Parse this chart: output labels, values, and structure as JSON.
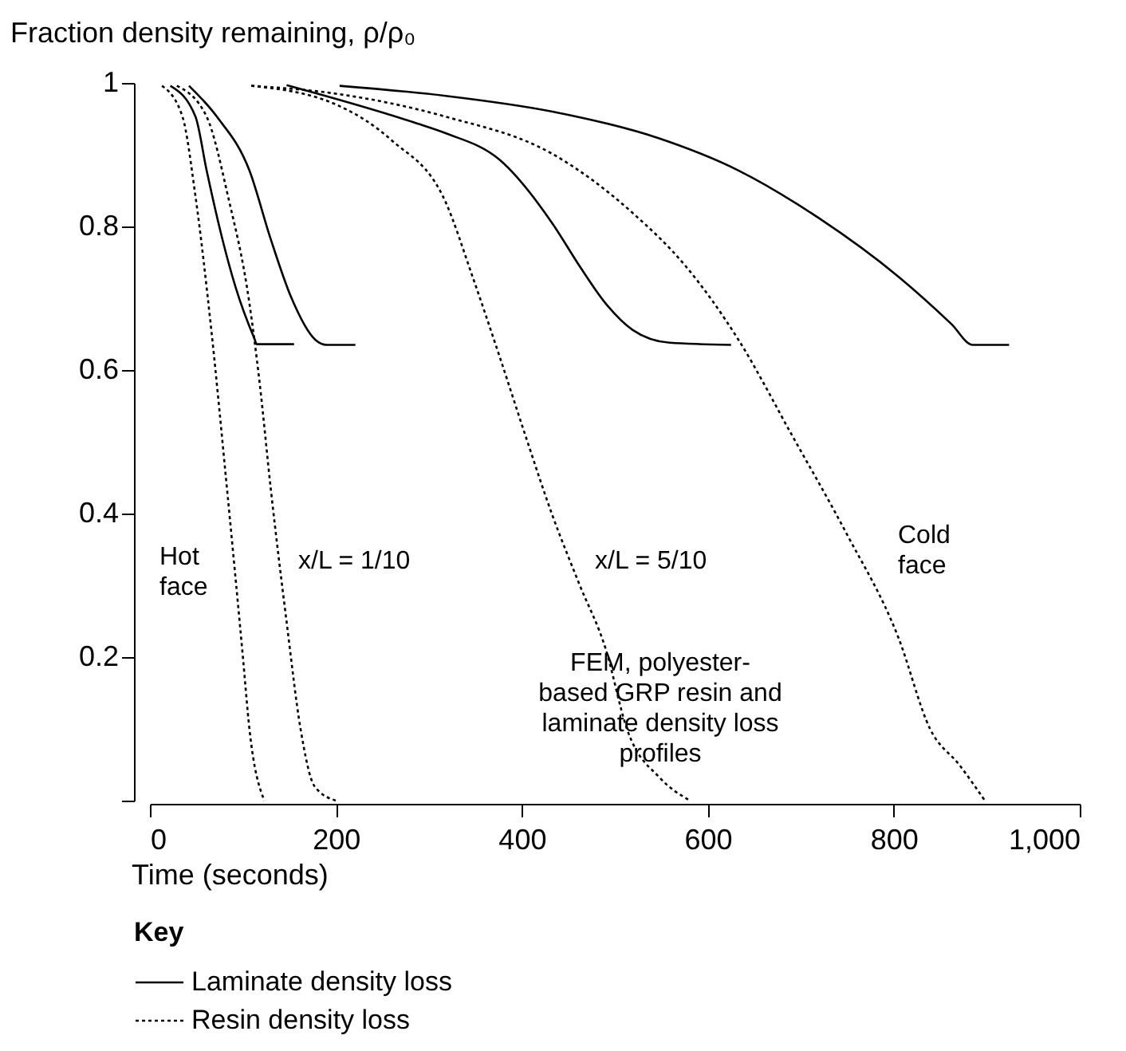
{
  "chart_data": {
    "type": "line",
    "xlabel": "Time (seconds)",
    "ylabel": "Fraction density remaining, ρ/ρ₀",
    "legend_title": "Key",
    "xlim": [
      0,
      1000
    ],
    "ylim": [
      0,
      1
    ],
    "xticks": [
      0,
      200,
      400,
      600,
      800,
      {
        "value": 1000,
        "label": "1,000"
      }
    ],
    "yticks": [
      {
        "value": 0,
        "label": null
      },
      0.2,
      0.4,
      0.6,
      0.8,
      {
        "value": 1,
        "label": "1"
      }
    ],
    "grid": false,
    "legend": "bottom left",
    "marker": "none",
    "series": [
      {
        "name": "Laminate density loss",
        "color": "#000000",
        "line_style": "solid",
        "x": [
          22,
          49,
          61,
          78,
          92,
          112,
          115,
          155
        ],
        "values": [
          0.996,
          0.953,
          0.878,
          0.782,
          0.716,
          0.645,
          0.636,
          0.636
        ]
      },
      {
        "name": "Resin density loss",
        "color": "#000000",
        "line_style": "dotted",
        "x": [
          13,
          35,
          49,
          66,
          83,
          100,
          107,
          123
        ],
        "values": [
          0.996,
          0.953,
          0.842,
          0.656,
          0.433,
          0.2,
          0.1,
          0
        ]
      },
      {
        "color": "#000000",
        "line_style": "solid",
        "x": [
          42,
          72,
          107,
          130,
          152,
          178,
          190,
          221
        ],
        "values": [
          0.996,
          0.953,
          0.878,
          0.782,
          0.701,
          0.642,
          0.635,
          0.635
        ]
      },
      {
        "color": "#000000",
        "line_style": "dotted",
        "x": [
          29,
          61,
          84,
          107,
          118,
          130,
          147,
          162,
          177,
          200
        ],
        "values": [
          0.996,
          0.953,
          0.842,
          0.693,
          0.582,
          0.434,
          0.249,
          0.1,
          0.02,
          0
        ]
      },
      {
        "color": "#000000",
        "line_style": "solid",
        "x": [
          147,
          284,
          318,
          376,
          433,
          462,
          490,
          519,
          559,
          625
        ],
        "values": [
          0.997,
          0.945,
          0.93,
          0.893,
          0.804,
          0.745,
          0.693,
          0.656,
          0.638,
          0.635
        ]
      },
      {
        "color": "#000000",
        "line_style": "dotted",
        "x": [
          109,
          200,
          260,
          318,
          347,
          376,
          404,
          433,
          462,
          490,
          513,
          549,
          581
        ],
        "values": [
          0.996,
          0.97,
          0.92,
          0.834,
          0.73,
          0.619,
          0.508,
          0.397,
          0.301,
          0.212,
          0.1,
          0.031,
          0
        ]
      },
      {
        "color": "#000000",
        "line_style": "solid",
        "x": [
          204,
          318,
          433,
          547,
          633,
          719,
          805,
          862,
          885,
          924
        ],
        "values": [
          0.996,
          0.982,
          0.96,
          0.923,
          0.878,
          0.812,
          0.73,
          0.664,
          0.635,
          0.635
        ]
      },
      {
        "color": "#000000",
        "line_style": "dotted",
        "x": [
          109,
          200,
          318,
          433,
          519,
          576,
          633,
          691,
          748,
          805,
          839,
          871,
          898
        ],
        "values": [
          0.996,
          0.985,
          0.953,
          0.901,
          0.819,
          0.745,
          0.642,
          0.508,
          0.375,
          0.227,
          0.1,
          0.049,
          0
        ]
      }
    ],
    "annotations": [
      "Hot\nface",
      "x/L = 1/10",
      "x/L = 5/10",
      "Cold\nface",
      "FEM, polyester-\nbased GRP resin and\nlaminate density loss\nprofiles"
    ]
  }
}
